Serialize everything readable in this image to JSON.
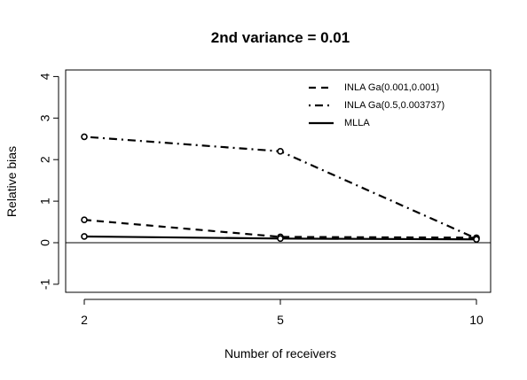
{
  "chart_data": {
    "type": "line",
    "title": "2nd variance = 0.01",
    "xlabel": "Number of receivers",
    "ylabel": "Relative bias",
    "x": [
      2,
      5,
      10
    ],
    "x_tick_labels": [
      "2",
      "5",
      "10"
    ],
    "xlim": [
      2,
      10
    ],
    "ylim": [
      -1.2,
      4.2
    ],
    "y_ticks": [
      -1,
      0,
      1,
      2,
      3,
      4
    ],
    "y_tick_labels": [
      "-1",
      "0",
      "1",
      "2",
      "3",
      "4"
    ],
    "reference_line_y": 0,
    "legend_position": "top-right",
    "series": [
      {
        "name": "INLA Ga(0.001,0.001)",
        "line_style": "dashed",
        "values": [
          0.55,
          0.14,
          0.12
        ]
      },
      {
        "name": "INLA Ga(0.5,0.003737)",
        "line_style": "dotdash",
        "values": [
          2.55,
          2.2,
          0.1
        ]
      },
      {
        "name": "MLLA",
        "line_style": "solid",
        "values": [
          0.15,
          0.1,
          0.08
        ]
      }
    ],
    "grid": false,
    "colors": {
      "lines": "#000000",
      "background": "#ffffff"
    }
  }
}
